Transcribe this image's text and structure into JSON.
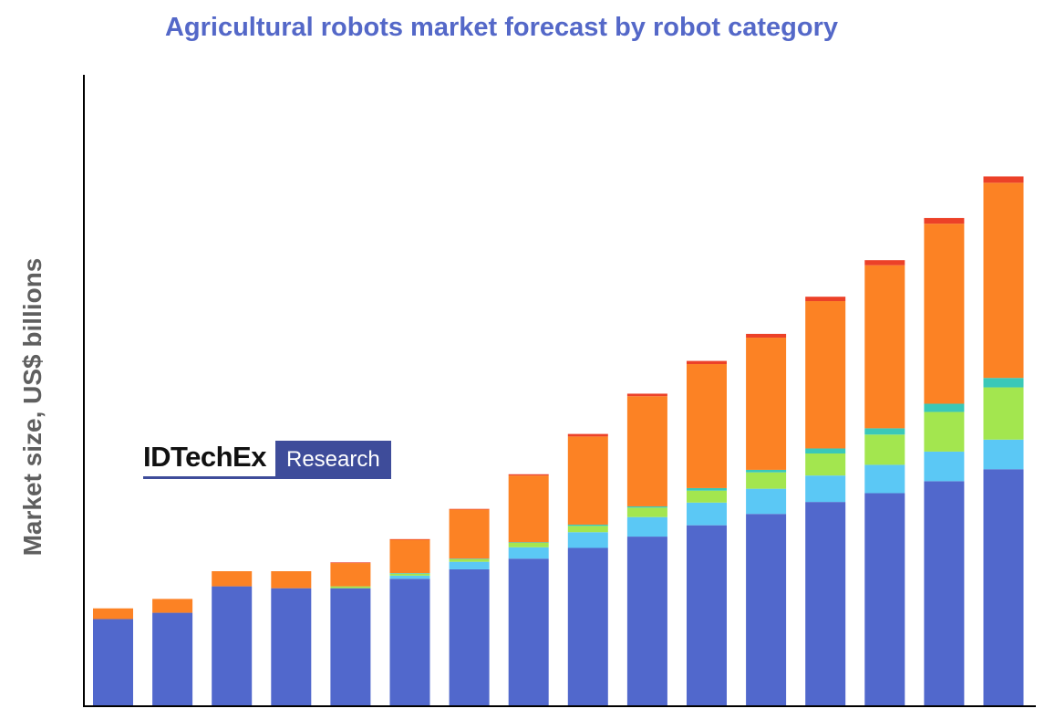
{
  "chart_data": {
    "type": "bar",
    "stacked": true,
    "title": "Agricultural robots market forecast by robot category",
    "ylabel": "Market size, US$ billions",
    "xlabel": "",
    "ylim": [
      0,
      100
    ],
    "grid": false,
    "legend": "none",
    "categories": [
      "",
      "",
      "",
      "",
      "",
      "",
      "",
      "",
      "",
      "",
      "",
      "",
      "",
      "",
      "",
      ""
    ],
    "series": [
      {
        "color": "#5168cc",
        "values": [
          13.7,
          14.7,
          18.9,
          18.6,
          18.6,
          20.1,
          21.6,
          23.3,
          25.0,
          26.8,
          28.6,
          30.4,
          32.3,
          33.7,
          35.6,
          37.5
        ]
      },
      {
        "color": "#5bc8f5",
        "values": [
          0,
          0,
          0,
          0,
          0,
          0.5,
          1.2,
          1.8,
          2.5,
          3.1,
          3.6,
          4.0,
          4.2,
          4.5,
          4.7,
          4.7
        ]
      },
      {
        "color": "#a3e64f",
        "values": [
          0,
          0,
          0,
          0,
          0.3,
          0.3,
          0.4,
          0.7,
          1.0,
          1.5,
          1.9,
          2.6,
          3.5,
          4.8,
          6.3,
          8.3
        ]
      },
      {
        "color": "#3ac8b8",
        "values": [
          0,
          0,
          0,
          0,
          0,
          0.1,
          0.1,
          0.1,
          0.2,
          0.2,
          0.4,
          0.4,
          0.8,
          1.0,
          1.3,
          1.5
        ]
      },
      {
        "color": "#fc8224",
        "values": [
          1.7,
          2.2,
          2.4,
          2.7,
          3.7,
          5.3,
          7.8,
          10.6,
          14.0,
          17.5,
          19.7,
          21.0,
          23.4,
          25.9,
          28.6,
          31.0
        ]
      },
      {
        "color": "#ec4128",
        "values": [
          0,
          0,
          0,
          0,
          0.1,
          0.1,
          0.1,
          0.2,
          0.4,
          0.4,
          0.5,
          0.6,
          0.7,
          0.8,
          0.9,
          1.0
        ]
      }
    ]
  },
  "logo": {
    "brand": "IDTechEx",
    "tag": "Research"
  }
}
